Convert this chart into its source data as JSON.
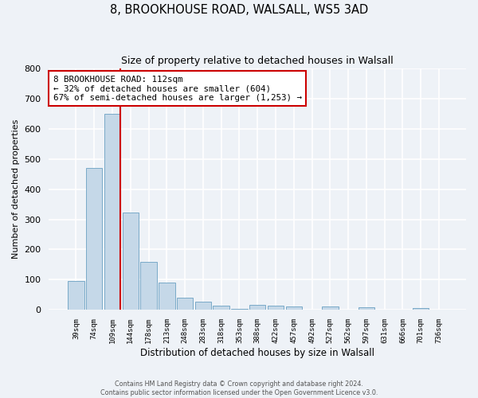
{
  "title1": "8, BROOKHOUSE ROAD, WALSALL, WS5 3AD",
  "title2": "Size of property relative to detached houses in Walsall",
  "xlabel": "Distribution of detached houses by size in Walsall",
  "ylabel": "Number of detached properties",
  "bar_labels": [
    "39sqm",
    "74sqm",
    "109sqm",
    "144sqm",
    "178sqm",
    "213sqm",
    "248sqm",
    "283sqm",
    "318sqm",
    "353sqm",
    "388sqm",
    "422sqm",
    "457sqm",
    "492sqm",
    "527sqm",
    "562sqm",
    "597sqm",
    "631sqm",
    "666sqm",
    "701sqm",
    "736sqm"
  ],
  "bar_values": [
    95,
    470,
    648,
    323,
    160,
    90,
    40,
    27,
    15,
    5,
    18,
    15,
    13,
    2,
    13,
    2,
    9,
    2,
    2,
    7,
    2
  ],
  "bar_color": "#c5d8e8",
  "bar_edge_color": "#7aaac8",
  "bg_color": "#eef2f7",
  "grid_color": "#ffffff",
  "vline_color": "#cc0000",
  "annotation_line1": "8 BROOKHOUSE ROAD: 112sqm",
  "annotation_line2": "← 32% of detached houses are smaller (604)",
  "annotation_line3": "67% of semi-detached houses are larger (1,253) →",
  "annotation_box_color": "#ffffff",
  "annotation_box_edge_color": "#cc0000",
  "ylim": [
    0,
    800
  ],
  "yticks": [
    0,
    100,
    200,
    300,
    400,
    500,
    600,
    700,
    800
  ],
  "footer1": "Contains HM Land Registry data © Crown copyright and database right 2024.",
  "footer2": "Contains public sector information licensed under the Open Government Licence v3.0."
}
